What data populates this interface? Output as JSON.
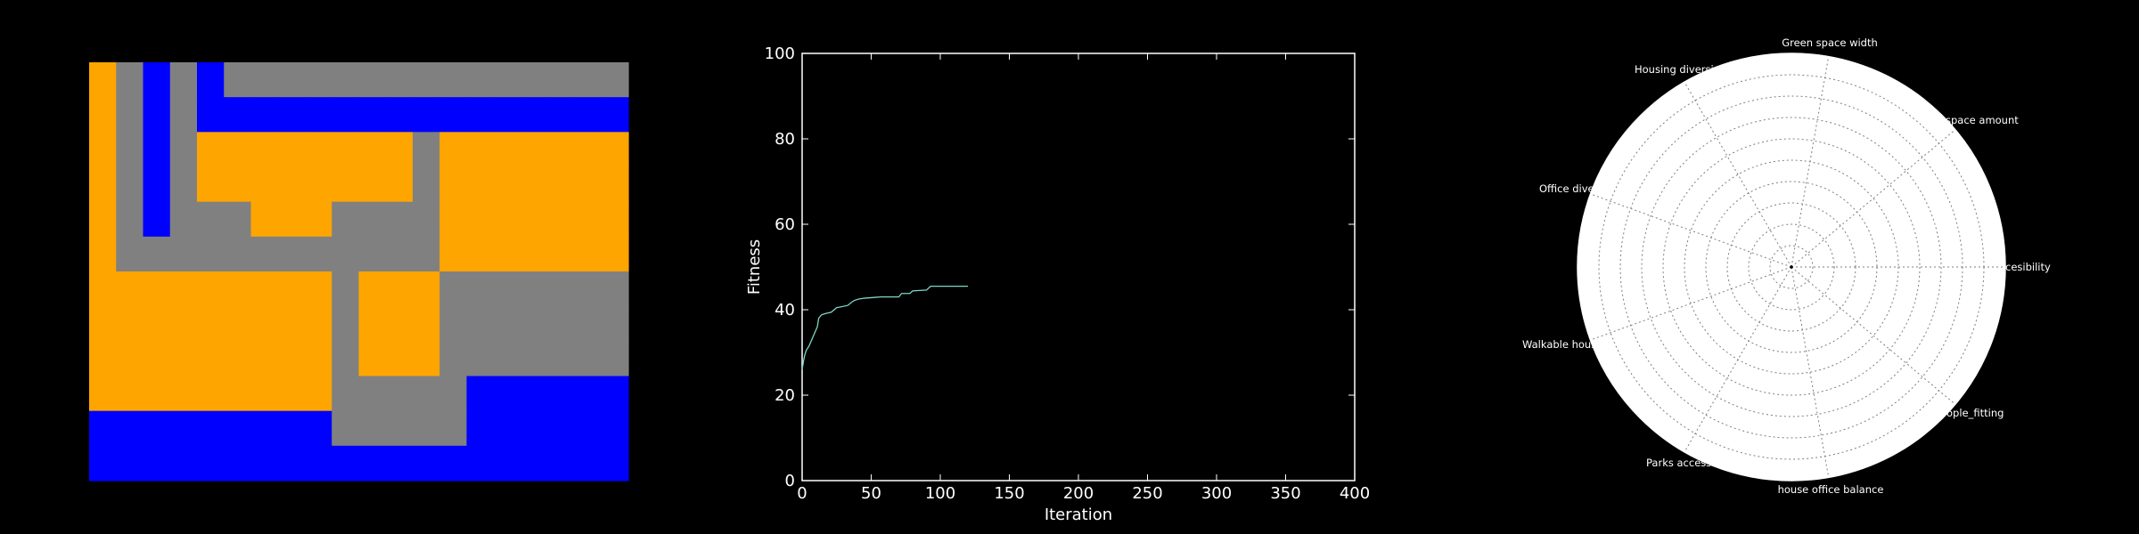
{
  "palette": {
    "bg": "#000000",
    "road": "#808080",
    "housing": "#ffa500",
    "office": "#0000ff",
    "park": "#008000",
    "line": "#7fd6c4"
  },
  "grid_map": {
    "rows": [
      "HRORORRRRRRRRRRRRRRR",
      "HROROOOOOOOOOOOOOOOO",
      "HRORHHHHHHHHRHHHHHHH",
      "HRORHHHHHHHHRHHHHHHH",
      "HRORRRHHHRRRRHHHHHHH",
      "HRRRRRRRRRRRRHHHHHHH",
      "HHHHHHHHHRHHHRRRRRRR",
      "HHHHHHHHHRHHHRRRRRRR",
      "HHHHHHHHHRHHHRRRRRRR",
      "HHHHHHHHHRRRRROOOOOO",
      "OOOOOOOOORRRRROOOOOO",
      "OOOOOOOOOOOOOOOOOOOO"
    ]
  },
  "chart_data": [
    {
      "type": "line",
      "title": "",
      "xlabel": "Iteration",
      "ylabel": "Fitness",
      "xlim": [
        0,
        400
      ],
      "ylim": [
        0,
        100
      ],
      "xticks": [
        0,
        50,
        100,
        150,
        200,
        250,
        300,
        350,
        400
      ],
      "yticks": [
        0,
        20,
        40,
        60,
        80,
        100
      ],
      "series": [
        {
          "x": [
            0,
            1,
            2,
            3,
            5,
            7,
            9,
            11,
            12,
            14,
            16,
            18,
            21,
            25,
            27,
            33,
            36,
            38,
            41,
            45,
            49,
            53,
            57,
            61,
            65,
            70,
            72,
            78,
            80,
            90,
            93,
            100,
            105,
            110,
            115,
            120
          ],
          "y": [
            26,
            28,
            29.5,
            30.5,
            31.5,
            33,
            34.5,
            36,
            38,
            38.8,
            39,
            39.2,
            39.4,
            40.5,
            40.6,
            41,
            41.8,
            42.2,
            42.5,
            42.7,
            42.8,
            42.9,
            43,
            43,
            43,
            43,
            43.8,
            43.8,
            44.4,
            44.6,
            45.5,
            45.5,
            45.5,
            45.5,
            45.5,
            45.5
          ]
        }
      ]
    },
    {
      "type": "radar",
      "title": "",
      "axes": [
        "Accessibility",
        "Green space amount",
        "Green space width",
        "Housing diversity",
        "Office diversity",
        "Walkable housing",
        "Parks access",
        "house office balance",
        "people_fitting"
      ],
      "visible_axis_labels": [
        "Green space width",
        "Housing diversi",
        "space amount",
        "Office dive",
        "cesibility",
        "Walkable hous",
        "ople_fitting",
        "Parks access",
        "house office balance"
      ],
      "rlim": [
        0,
        100
      ],
      "rings": 10,
      "values": []
    }
  ]
}
